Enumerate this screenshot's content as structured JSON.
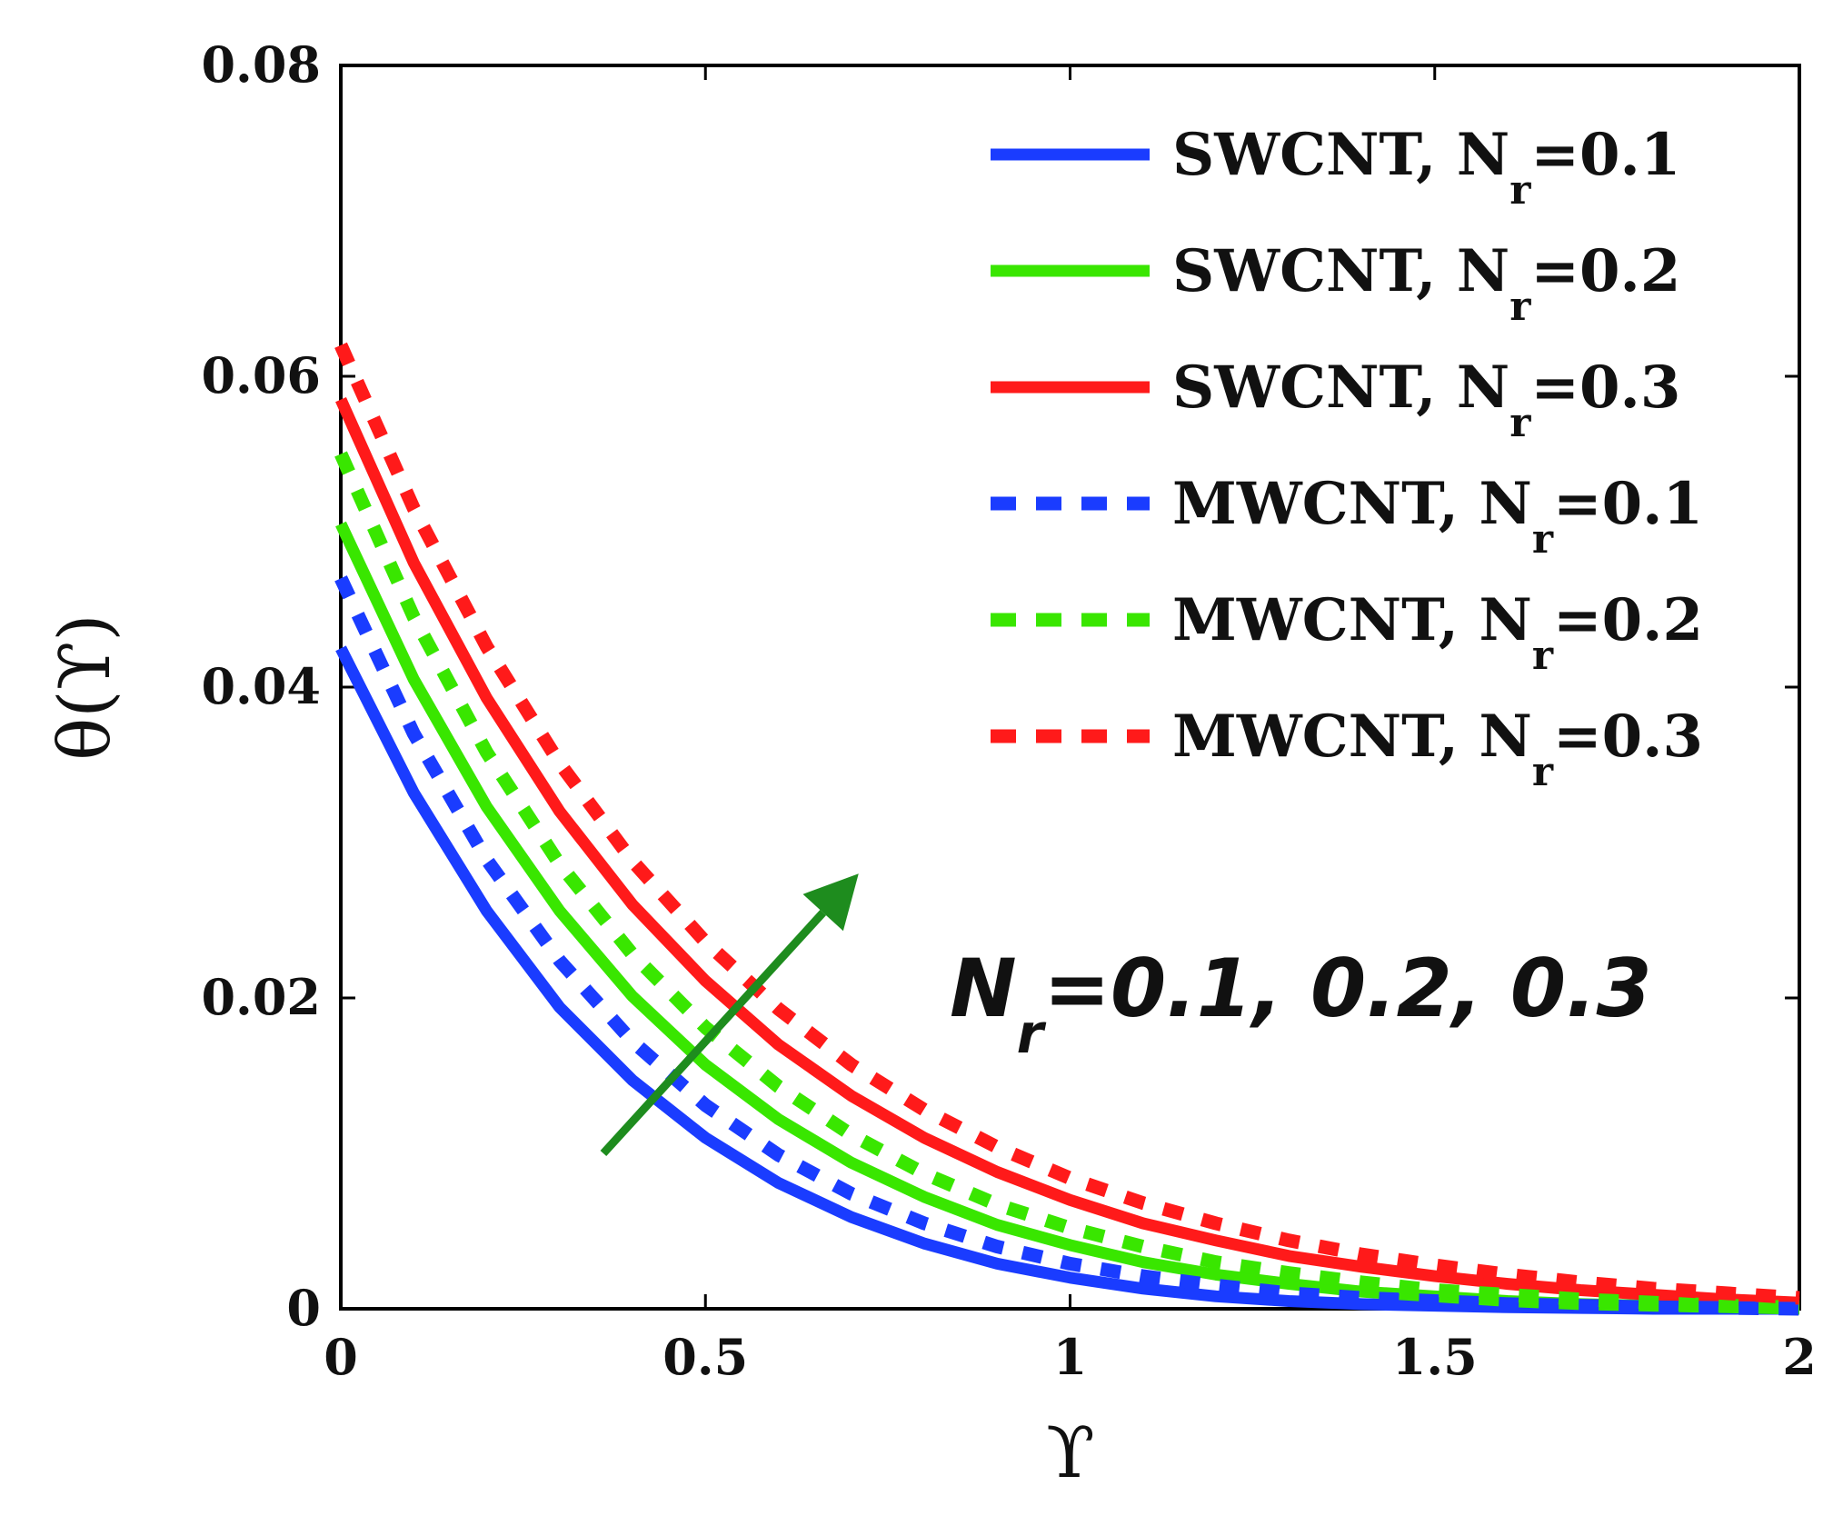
{
  "chart_data": {
    "type": "line",
    "title": "",
    "xlabel": "ϒ",
    "ylabel": "θ(ϒ)",
    "xlim": [
      0,
      2
    ],
    "ylim": [
      0,
      0.08
    ],
    "xticks": [
      "0",
      "0.5",
      "1",
      "1.5",
      "2"
    ],
    "yticks": [
      "0",
      "0.02",
      "0.04",
      "0.06",
      "0.08"
    ],
    "x": [
      0,
      0.1,
      0.2,
      0.3,
      0.4,
      0.5,
      0.6,
      0.7,
      0.8,
      0.9,
      1.0,
      1.1,
      1.2,
      1.3,
      1.4,
      1.5,
      1.6,
      1.7,
      1.8,
      1.9,
      2.0
    ],
    "series": [
      {
        "name": "SWCNT, N",
        "sub": "r",
        "suffix": "=0.1",
        "color": "#1a3cff",
        "dash": "solid",
        "values": [
          0.0425,
          0.0332,
          0.0256,
          0.0194,
          0.0147,
          0.011,
          0.0081,
          0.0059,
          0.0042,
          0.0029,
          0.002,
          0.0013,
          0.0008,
          0.0005,
          0.0003,
          0.0002,
          0.0001,
          5e-05,
          0.0,
          0.0,
          0.0
        ]
      },
      {
        "name": "SWCNT, N",
        "sub": "r",
        "suffix": "=0.2",
        "color": "#39e600",
        "dash": "solid",
        "values": [
          0.0505,
          0.0405,
          0.0323,
          0.0256,
          0.0201,
          0.0157,
          0.0122,
          0.0094,
          0.0072,
          0.0054,
          0.0041,
          0.003,
          0.0022,
          0.0016,
          0.0011,
          0.0008,
          0.0005,
          0.0003,
          0.0002,
          0.0001,
          0.0
        ]
      },
      {
        "name": "SWCNT, N",
        "sub": "r",
        "suffix": "=0.3",
        "color": "#ff1a1a",
        "dash": "solid",
        "values": [
          0.0585,
          0.048,
          0.0393,
          0.032,
          0.026,
          0.0211,
          0.017,
          0.0137,
          0.011,
          0.0088,
          0.007,
          0.0055,
          0.0044,
          0.0034,
          0.0027,
          0.0021,
          0.0016,
          0.0012,
          0.0009,
          0.0006,
          0.0004
        ]
      },
      {
        "name": "MWCNT, N",
        "sub": "r",
        "suffix": "=0.1",
        "color": "#1a3cff",
        "dash": "dashed",
        "values": [
          0.047,
          0.037,
          0.0289,
          0.0224,
          0.0172,
          0.0131,
          0.0099,
          0.0074,
          0.0055,
          0.004,
          0.0029,
          0.0021,
          0.0015,
          0.001,
          0.0007,
          0.0005,
          0.0003,
          0.0002,
          0.0001,
          5e-05,
          0.0
        ]
      },
      {
        "name": "MWCNT, N",
        "sub": "r",
        "suffix": "=0.2",
        "color": "#39e600",
        "dash": "dashed",
        "values": [
          0.055,
          0.0445,
          0.0358,
          0.0286,
          0.0228,
          0.0181,
          0.0143,
          0.0112,
          0.0087,
          0.0067,
          0.0052,
          0.004,
          0.003,
          0.0023,
          0.0017,
          0.0012,
          0.0009,
          0.0006,
          0.0004,
          0.0002,
          0.0001
        ]
      },
      {
        "name": "MWCNT, N",
        "sub": "r",
        "suffix": "=0.3",
        "color": "#ff1a1a",
        "dash": "dashed",
        "values": [
          0.062,
          0.0515,
          0.0426,
          0.0351,
          0.0288,
          0.0236,
          0.0193,
          0.0157,
          0.0128,
          0.0104,
          0.0084,
          0.0068,
          0.0055,
          0.0044,
          0.0035,
          0.0028,
          0.0022,
          0.0017,
          0.0013,
          0.001,
          0.0007
        ]
      }
    ],
    "legend_position": "top-right",
    "annotation": {
      "text": "N",
      "sub": "r",
      "suffix": "=0.1, 0.2, 0.3",
      "arrow_color": "#1e8c1e",
      "arrow_from": [
        0.36,
        0.01
      ],
      "arrow_to": [
        0.71,
        0.028
      ]
    }
  }
}
